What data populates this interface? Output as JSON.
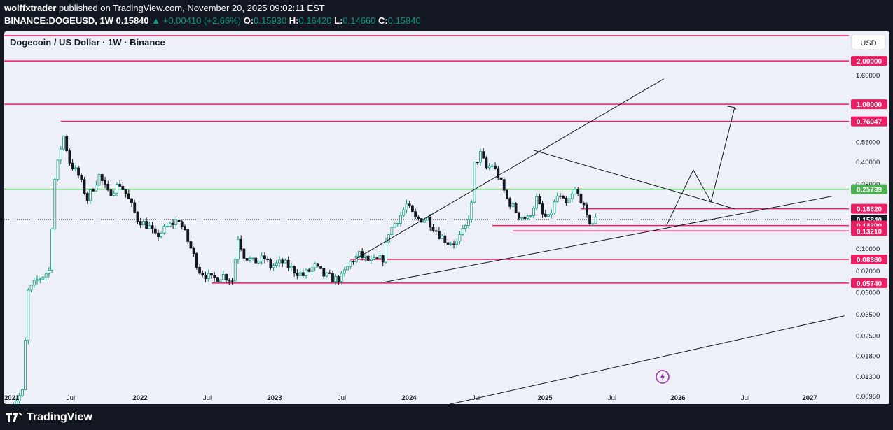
{
  "header": {
    "author": "wolffxtrader",
    "published": "published on TradingView.com, November 20, 2025 09:02:11 EST",
    "symbol": "BINANCE:DOGEUSD, 1W",
    "last": "0.15840",
    "change": "+0.00410 (+2.66%)",
    "o_label": "O:",
    "o_value": "0.15930",
    "h_label": "H:",
    "h_value": "0.16420",
    "l_label": "L:",
    "l_value": "0.14660",
    "c_label": "C:",
    "c_value": "0.15840"
  },
  "footer": {
    "brand": "TradingView"
  },
  "colors": {
    "up": "#089981",
    "down": "#131722",
    "level": "#e91e63",
    "support_green": "#4caf50",
    "text": "#131722"
  },
  "chart_data": {
    "type": "candlestick",
    "title": "Dogecoin / US Dollar · 1W · Binance",
    "currency_label": "USD",
    "y_scale": "log",
    "ylim": [
      0.0083,
      3.2
    ],
    "x_ticks": [
      "2021",
      "Jul",
      "2022",
      "Jul",
      "2023",
      "Jul",
      "2024",
      "Jul",
      "2025",
      "Jul",
      "2026",
      "Jul",
      "2027"
    ],
    "y_ticks": [
      "2.00000",
      "1.60000",
      "1.00000",
      "0.55000",
      "0.40000",
      "0.28000",
      "0.13000",
      "0.10000",
      "0.07000",
      "0.05000",
      "0.03500",
      "0.02500",
      "0.01800",
      "0.01300",
      "0.00950"
    ],
    "price_levels": [
      {
        "value": "2.00000",
        "color": "#e91e63"
      },
      {
        "value": "1.00000",
        "color": "#e91e63"
      },
      {
        "value": "0.76047",
        "color": "#e91e63"
      },
      {
        "value": "0.25739",
        "color": "#4caf50"
      },
      {
        "value": "0.18820",
        "color": "#e91e63"
      },
      {
        "value": "0.15840",
        "color": "#131722"
      },
      {
        "value": "0.14390",
        "color": "#e91e63"
      },
      {
        "value": "0.13210",
        "color": "#e91e63"
      },
      {
        "value": "0.08380",
        "color": "#e91e63"
      },
      {
        "value": "0.05740",
        "color": "#e91e63"
      }
    ],
    "anchors": [
      {
        "t": 0,
        "p": 0.008
      },
      {
        "t": 4,
        "p": 0.01
      },
      {
        "t": 6,
        "p": 0.05
      },
      {
        "t": 9,
        "p": 0.06
      },
      {
        "t": 13,
        "p": 0.07
      },
      {
        "t": 15,
        "p": 0.3
      },
      {
        "t": 17,
        "p": 0.5
      },
      {
        "t": 18,
        "p": 0.6
      },
      {
        "t": 20,
        "p": 0.4
      },
      {
        "t": 23,
        "p": 0.32
      },
      {
        "t": 26,
        "p": 0.22
      },
      {
        "t": 30,
        "p": 0.32
      },
      {
        "t": 33,
        "p": 0.24
      },
      {
        "t": 37,
        "p": 0.28
      },
      {
        "t": 39,
        "p": 0.24
      },
      {
        "t": 43,
        "p": 0.16
      },
      {
        "t": 47,
        "p": 0.14
      },
      {
        "t": 49,
        "p": 0.12
      },
      {
        "t": 53,
        "p": 0.14
      },
      {
        "t": 57,
        "p": 0.16
      },
      {
        "t": 61,
        "p": 0.1
      },
      {
        "t": 64,
        "p": 0.07
      },
      {
        "t": 68,
        "p": 0.061
      },
      {
        "t": 72,
        "p": 0.065
      },
      {
        "t": 75,
        "p": 0.06
      },
      {
        "t": 77,
        "p": 0.12
      },
      {
        "t": 79,
        "p": 0.09
      },
      {
        "t": 82,
        "p": 0.08
      },
      {
        "t": 86,
        "p": 0.085
      },
      {
        "t": 88,
        "p": 0.075
      },
      {
        "t": 92,
        "p": 0.08
      },
      {
        "t": 96,
        "p": 0.07
      },
      {
        "t": 99,
        "p": 0.065
      },
      {
        "t": 103,
        "p": 0.075
      },
      {
        "t": 106,
        "p": 0.065
      },
      {
        "t": 110,
        "p": 0.061
      },
      {
        "t": 112,
        "p": 0.063
      },
      {
        "t": 115,
        "p": 0.08
      },
      {
        "t": 118,
        "p": 0.09
      },
      {
        "t": 122,
        "p": 0.08
      },
      {
        "t": 126,
        "p": 0.085
      },
      {
        "t": 128,
        "p": 0.13
      },
      {
        "t": 132,
        "p": 0.17
      },
      {
        "t": 134,
        "p": 0.2
      },
      {
        "t": 137,
        "p": 0.16
      },
      {
        "t": 141,
        "p": 0.16
      },
      {
        "t": 145,
        "p": 0.125
      },
      {
        "t": 148,
        "p": 0.11
      },
      {
        "t": 151,
        "p": 0.11
      },
      {
        "t": 154,
        "p": 0.14
      },
      {
        "t": 156,
        "p": 0.2
      },
      {
        "t": 157,
        "p": 0.38
      },
      {
        "t": 159,
        "p": 0.45
      },
      {
        "t": 161,
        "p": 0.36
      },
      {
        "t": 163,
        "p": 0.38
      },
      {
        "t": 165,
        "p": 0.32
      },
      {
        "t": 168,
        "p": 0.22
      },
      {
        "t": 172,
        "p": 0.17
      },
      {
        "t": 175,
        "p": 0.16
      },
      {
        "t": 178,
        "p": 0.22
      },
      {
        "t": 180,
        "p": 0.17
      },
      {
        "t": 182,
        "p": 0.16
      },
      {
        "t": 185,
        "p": 0.23
      },
      {
        "t": 188,
        "p": 0.2
      },
      {
        "t": 191,
        "p": 0.25
      },
      {
        "t": 193,
        "p": 0.22
      },
      {
        "t": 195,
        "p": 0.16
      },
      {
        "t": 197,
        "p": 0.15
      },
      {
        "t": 198,
        "p": 0.158
      }
    ]
  }
}
